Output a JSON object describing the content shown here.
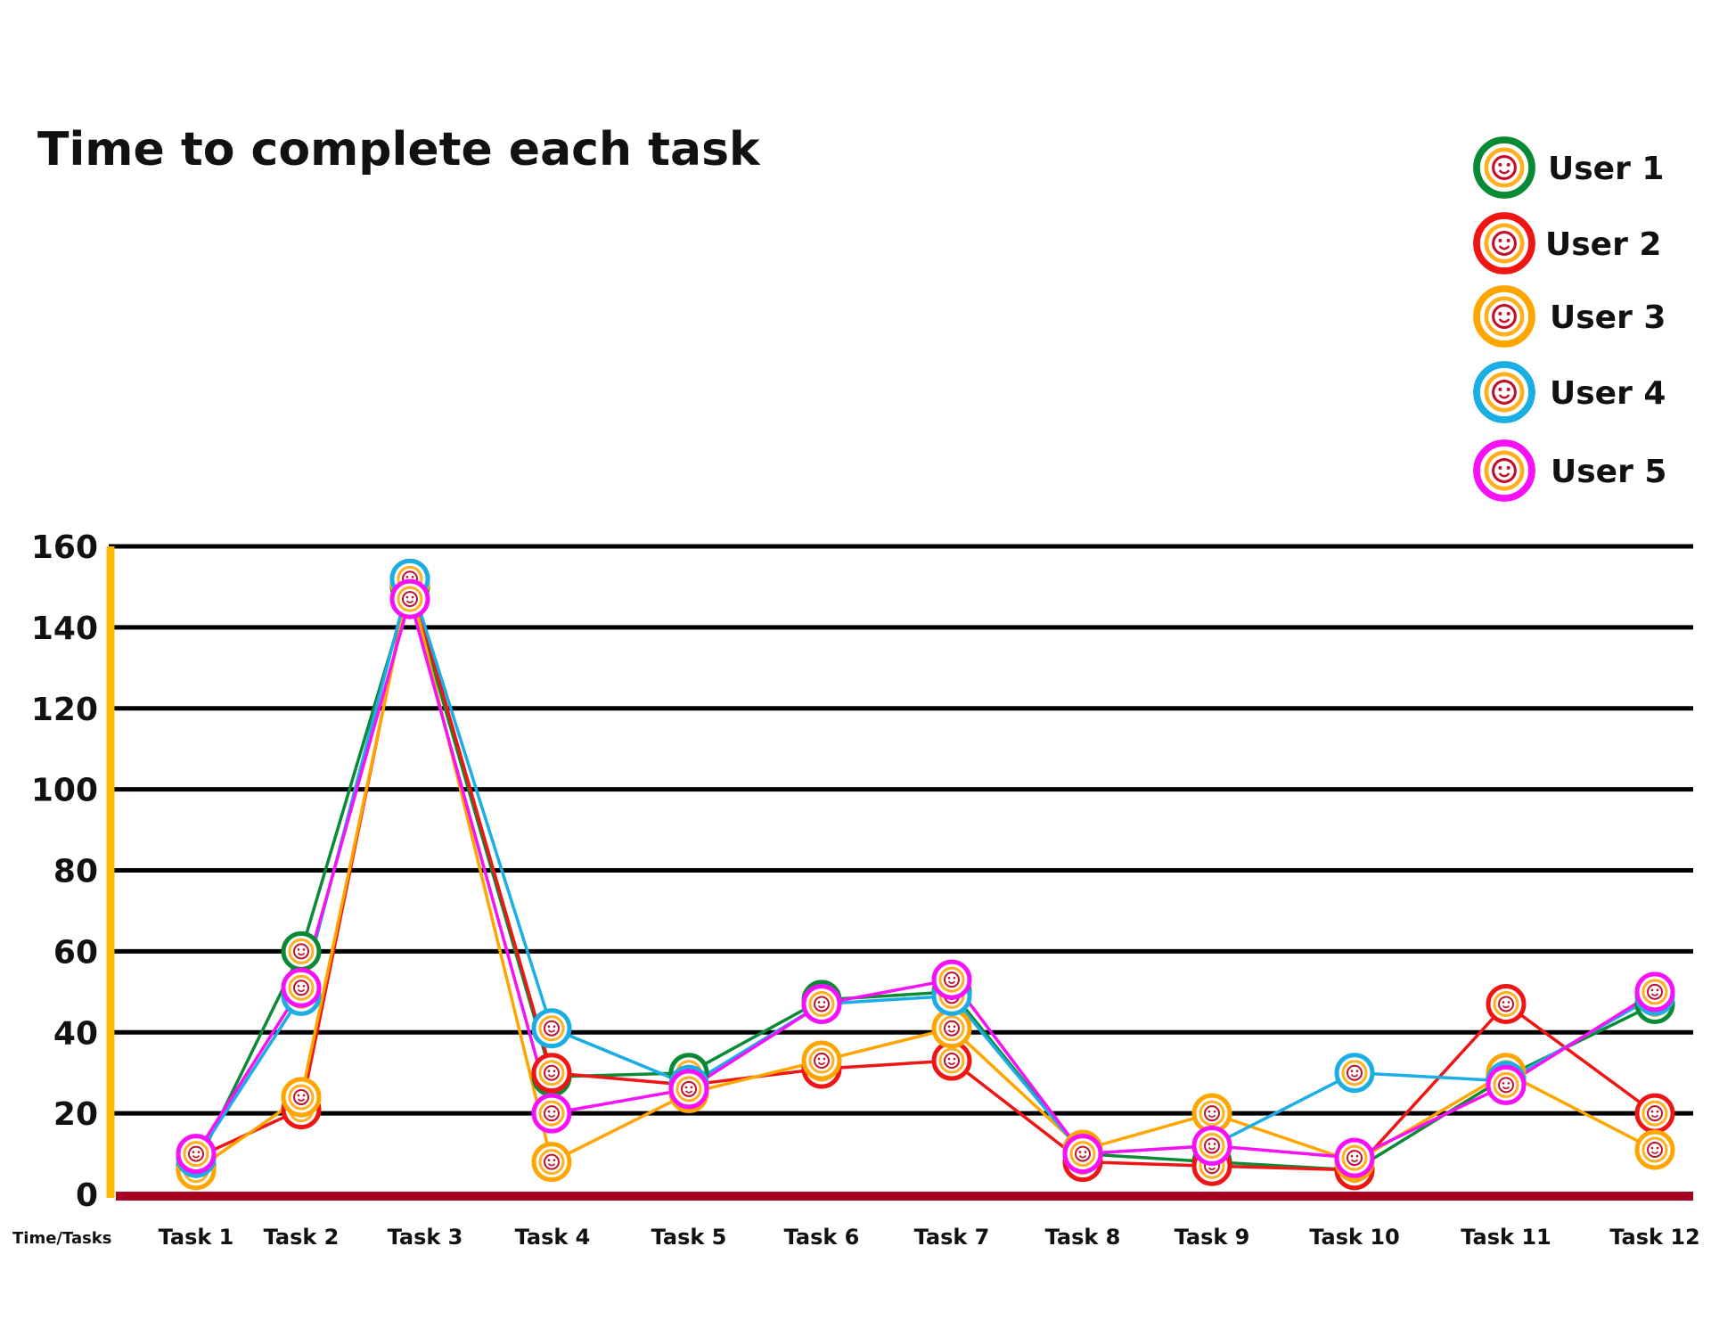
{
  "chart_data": {
    "type": "line",
    "title": "Time to complete each task",
    "corner_label": "Time/Tasks",
    "categories": [
      "Task 1",
      "Task 2",
      "Task 3",
      "Task 4",
      "Task 5",
      "Task 6",
      "Task 7",
      "Task 8",
      "Task 9",
      "Task 10",
      "Task 11",
      "Task 12"
    ],
    "y_ticks": [
      "0",
      "20",
      "40",
      "60",
      "80",
      "100",
      "120",
      "140",
      "160"
    ],
    "ylim": [
      0,
      160
    ],
    "grid": true,
    "legend_position": "top-right",
    "marker": "smiley-face-circle",
    "axis_colors": {
      "y_axis": "#FFB800",
      "x_axis": "#A50021",
      "grid": "#000000"
    },
    "series": [
      {
        "name": "User 1",
        "color": "#0B8A36",
        "values": [
          7,
          60,
          150,
          29,
          30,
          48,
          50,
          10,
          8,
          6,
          29,
          47
        ]
      },
      {
        "name": "User 2",
        "color": "#F01515",
        "values": [
          9,
          21,
          152,
          30,
          27,
          31,
          33,
          8,
          7,
          6,
          47,
          20
        ]
      },
      {
        "name": "User 3",
        "color": "#FFA500",
        "values": [
          6,
          24,
          151,
          8,
          25,
          33,
          41,
          11,
          20,
          8,
          30,
          11
        ]
      },
      {
        "name": "User 4",
        "color": "#1AAEE5",
        "values": [
          9,
          49,
          152,
          41,
          27,
          47,
          49,
          10,
          12,
          30,
          28,
          49
        ]
      },
      {
        "name": "User 5",
        "color": "#F711F7",
        "values": [
          10,
          51,
          147,
          20,
          26,
          47,
          53,
          10,
          12,
          9,
          27,
          50
        ]
      }
    ]
  }
}
